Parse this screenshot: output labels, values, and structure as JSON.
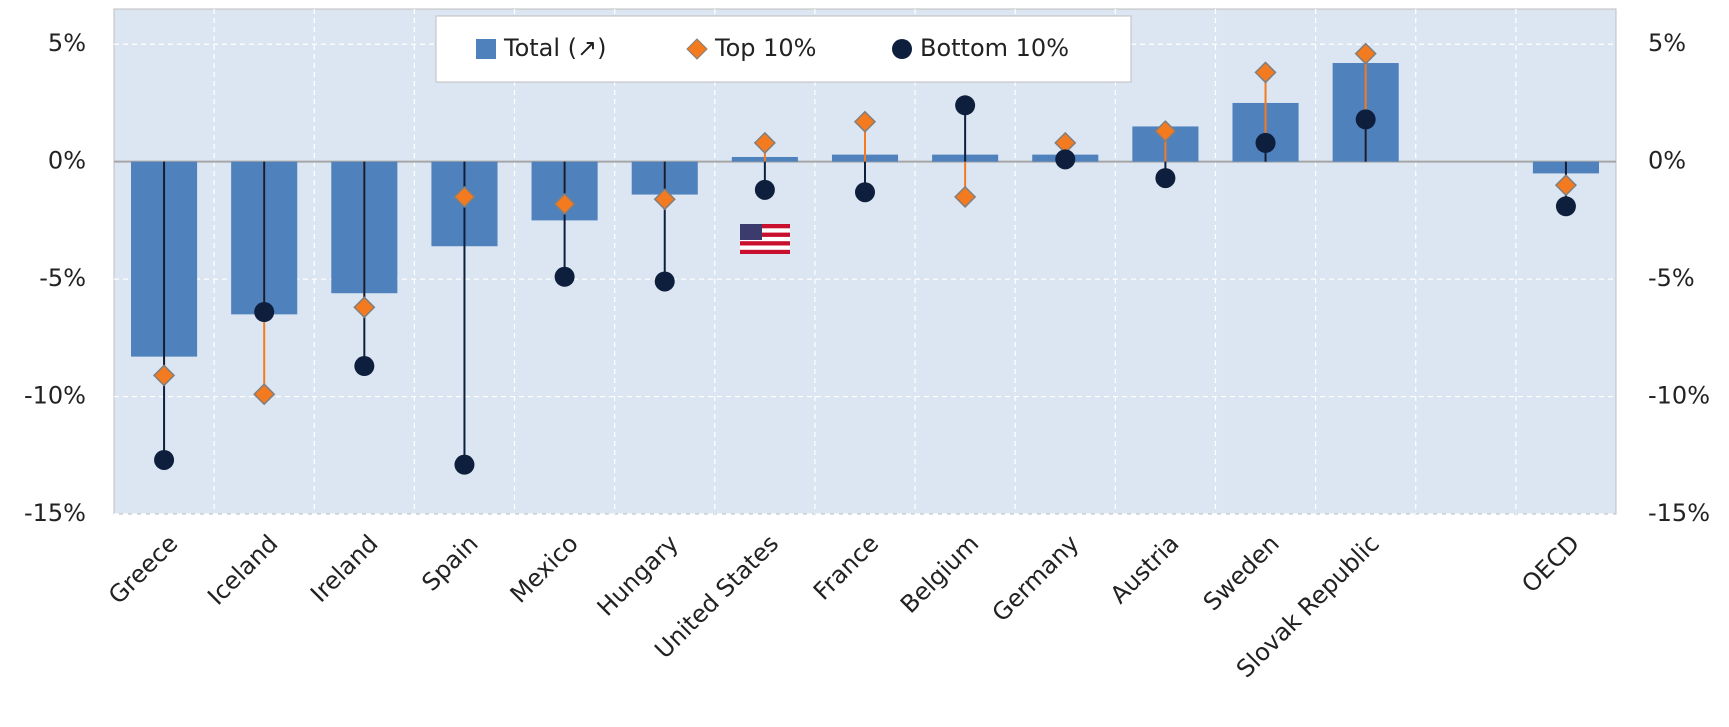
{
  "chart_data": {
    "type": "bar",
    "categories": [
      "Greece",
      "Iceland",
      "Ireland",
      "Spain",
      "Mexico",
      "Hungary",
      "United States",
      "France",
      "Belgium",
      "Germany",
      "Austria",
      "Sweden",
      "Slovak Republic",
      null,
      "OECD"
    ],
    "series": [
      {
        "name": "Total (↗)",
        "type": "bar",
        "color": "#4f81bd",
        "values": [
          -8.3,
          -6.5,
          -5.6,
          -3.6,
          -2.5,
          -1.4,
          0.2,
          0.3,
          0.3,
          0.3,
          1.5,
          2.5,
          4.2,
          null,
          -0.5
        ]
      },
      {
        "name": "Top 10%",
        "type": "diamond",
        "color": "#f47a1f",
        "values": [
          -9.1,
          -9.9,
          -6.2,
          -1.5,
          -1.8,
          -1.6,
          0.8,
          1.7,
          -1.5,
          0.8,
          1.3,
          3.8,
          4.6,
          null,
          -1.0
        ]
      },
      {
        "name": "Bottom 10%",
        "type": "circle",
        "color": "#0e1f3d",
        "values": [
          -12.7,
          -6.4,
          -8.7,
          -12.9,
          -4.9,
          -5.1,
          -1.2,
          -1.3,
          2.4,
          0.1,
          -0.7,
          0.8,
          1.8,
          null,
          -1.9
        ]
      }
    ],
    "ylim": [
      -15,
      6.5
    ],
    "yticks": [
      {
        "value": -15,
        "label": "-15%"
      },
      {
        "value": -10,
        "label": "-10%"
      },
      {
        "value": -5,
        "label": "-5%"
      },
      {
        "value": 0,
        "label": "0%"
      },
      {
        "value": 5,
        "label": "5%"
      }
    ],
    "y2lim": [
      -15,
      6.5
    ],
    "y2ticks": [
      {
        "value": -15,
        "label": "-15%"
      },
      {
        "value": -10,
        "label": "-10%"
      },
      {
        "value": -5,
        "label": "-5%"
      },
      {
        "value": 0,
        "label": "0%"
      },
      {
        "value": 5,
        "label": "5%"
      }
    ],
    "grid": true,
    "legend": "top"
  }
}
